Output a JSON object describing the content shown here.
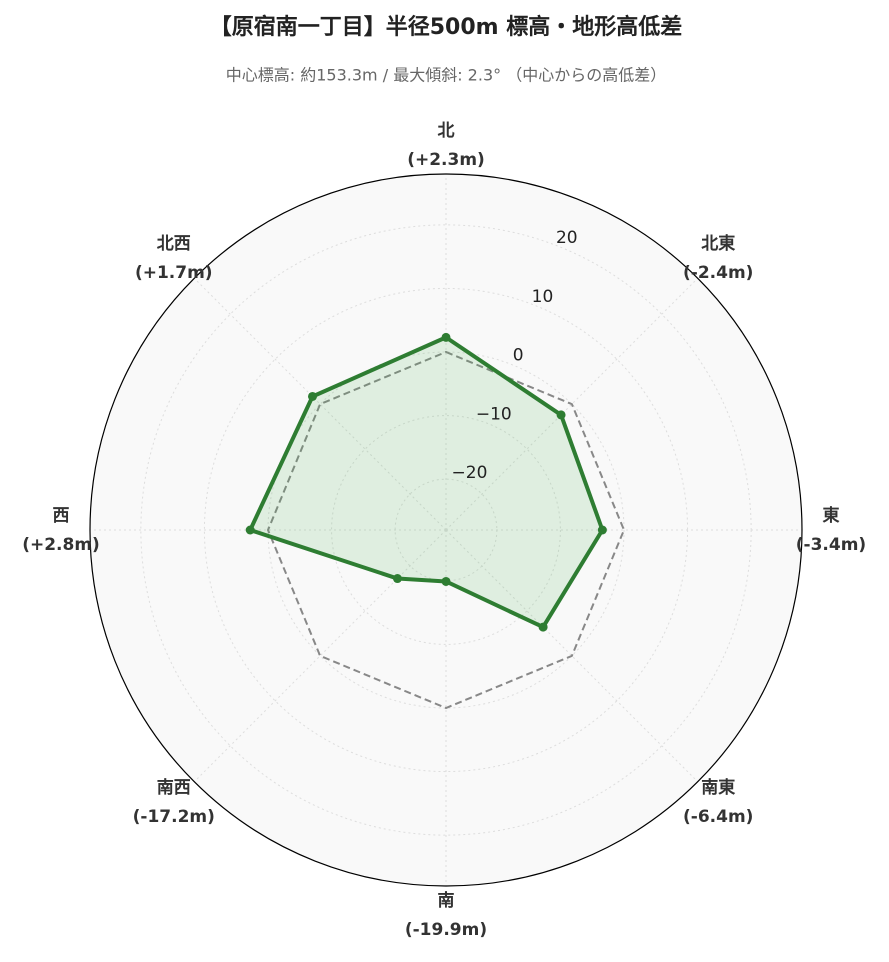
{
  "chart_data": {
    "type": "radar",
    "title": "【原宿南一丁目】半径500m 標高・地形高低差",
    "subtitle": "中心標高: 約153.3m / 最大傾斜: 2.3° （中心からの高低差）",
    "categories": [
      "北",
      "北東",
      "東",
      "南東",
      "南",
      "南西",
      "西",
      "北西"
    ],
    "values": [
      2.3,
      -2.4,
      -3.4,
      -6.4,
      -19.9,
      -17.2,
      2.8,
      1.7
    ],
    "value_labels": [
      "(+2.3m)",
      "(-2.4m)",
      "(-3.4m)",
      "(-6.4m)",
      "(-19.9m)",
      "(-17.2m)",
      "(+2.8m)",
      "(+1.7m)"
    ],
    "color": "#2e7d32",
    "baseline": 0,
    "ylim": [
      -28,
      28
    ],
    "yticks": [
      {
        "value": -20,
        "label": "−20"
      },
      {
        "value": -10,
        "label": "−10"
      },
      0,
      10,
      20
    ],
    "grid": true
  }
}
